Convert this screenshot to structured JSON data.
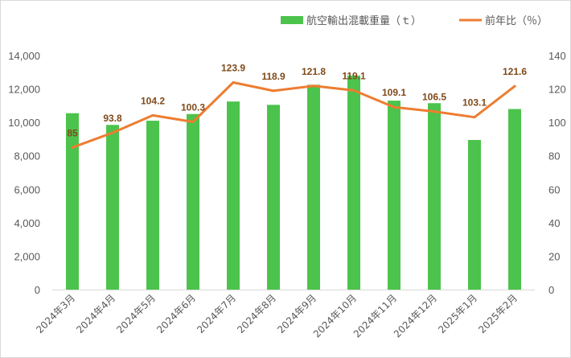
{
  "chart_data": {
    "type": "bar+line",
    "categories": [
      "2024年3月",
      "2024年4月",
      "2024年5月",
      "2024年6月",
      "2024年7月",
      "2024年8月",
      "2024年9月",
      "2024年10月",
      "2024年11月",
      "2024年12月",
      "2025年1月",
      "2025年2月"
    ],
    "series": [
      {
        "name": "航空輸出混載重量（ｔ）",
        "type": "bar",
        "axis": "left",
        "color": "#4cc34c",
        "values": [
          10550,
          9850,
          10100,
          10500,
          11250,
          11050,
          12250,
          12800,
          11300,
          11150,
          8950,
          10800
        ]
      },
      {
        "name": "前年比（％）",
        "type": "line",
        "axis": "right",
        "color": "#ed7d31",
        "values": [
          85,
          93.8,
          104.2,
          100.3,
          123.9,
          118.9,
          121.8,
          119.1,
          109.1,
          106.5,
          103.1,
          121.6
        ],
        "labels": [
          "85",
          "93.8",
          "104.2",
          "100.3",
          "123.9",
          "118.9",
          "121.8",
          "119.1",
          "109.1",
          "106.5",
          "103.1",
          "121.6"
        ]
      }
    ],
    "y_left": {
      "min": 0,
      "max": 14000,
      "ticks": [
        "0",
        "2,000",
        "4,000",
        "6,000",
        "8,000",
        "10,000",
        "12,000",
        "14,000"
      ]
    },
    "y_right": {
      "min": 0,
      "max": 140,
      "ticks": [
        "0",
        "20",
        "40",
        "60",
        "80",
        "100",
        "120",
        "140"
      ]
    },
    "legend_position": "top-right",
    "grid": false
  }
}
